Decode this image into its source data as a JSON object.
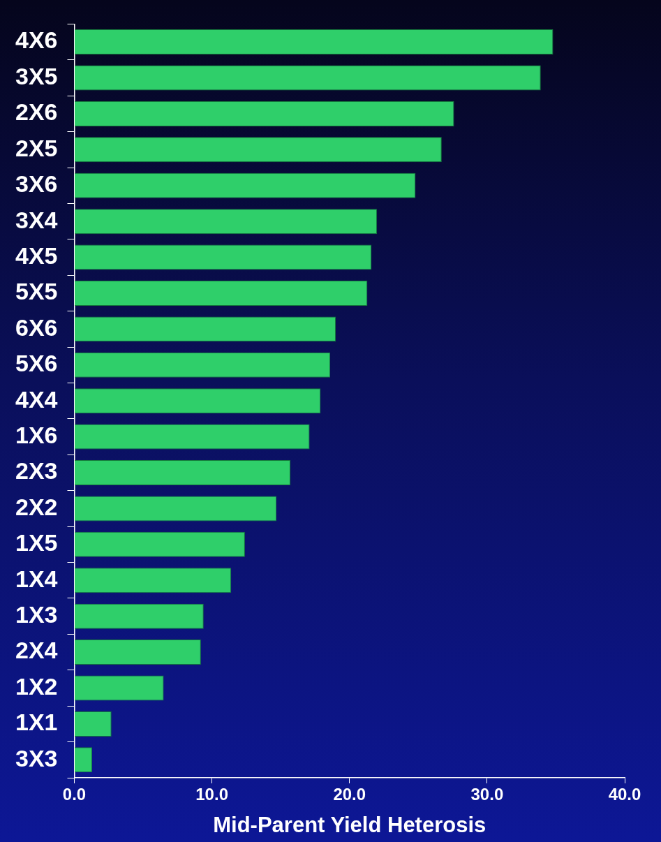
{
  "chart_data": {
    "type": "bar",
    "orientation": "horizontal",
    "xlabel": "Mid-Parent Yield Heterosis",
    "categories": [
      "4X6",
      "3X5",
      "2X6",
      "2X5",
      "3X6",
      "3X4",
      "4X5",
      "5X5",
      "6X6",
      "5X6",
      "4X4",
      "1X6",
      "2X3",
      "2X2",
      "1X5",
      "1X4",
      "1X3",
      "2X4",
      "1X2",
      "1X1",
      "3X3"
    ],
    "values": [
      34.8,
      33.9,
      27.6,
      26.7,
      24.8,
      22.0,
      21.6,
      21.3,
      19.0,
      18.6,
      17.9,
      17.1,
      15.7,
      14.7,
      12.4,
      11.4,
      9.4,
      9.2,
      6.5,
      2.7,
      1.3
    ],
    "color": "#2fcf6a",
    "xlim": [
      0,
      40
    ],
    "xticks": [
      {
        "value": 0,
        "label": "0.0"
      },
      {
        "value": 10,
        "label": "10.0"
      },
      {
        "value": 20,
        "label": "20.0"
      },
      {
        "value": 30,
        "label": "30.0"
      },
      {
        "value": 40,
        "label": "40.0"
      }
    ],
    "grid": false,
    "legend": false
  }
}
